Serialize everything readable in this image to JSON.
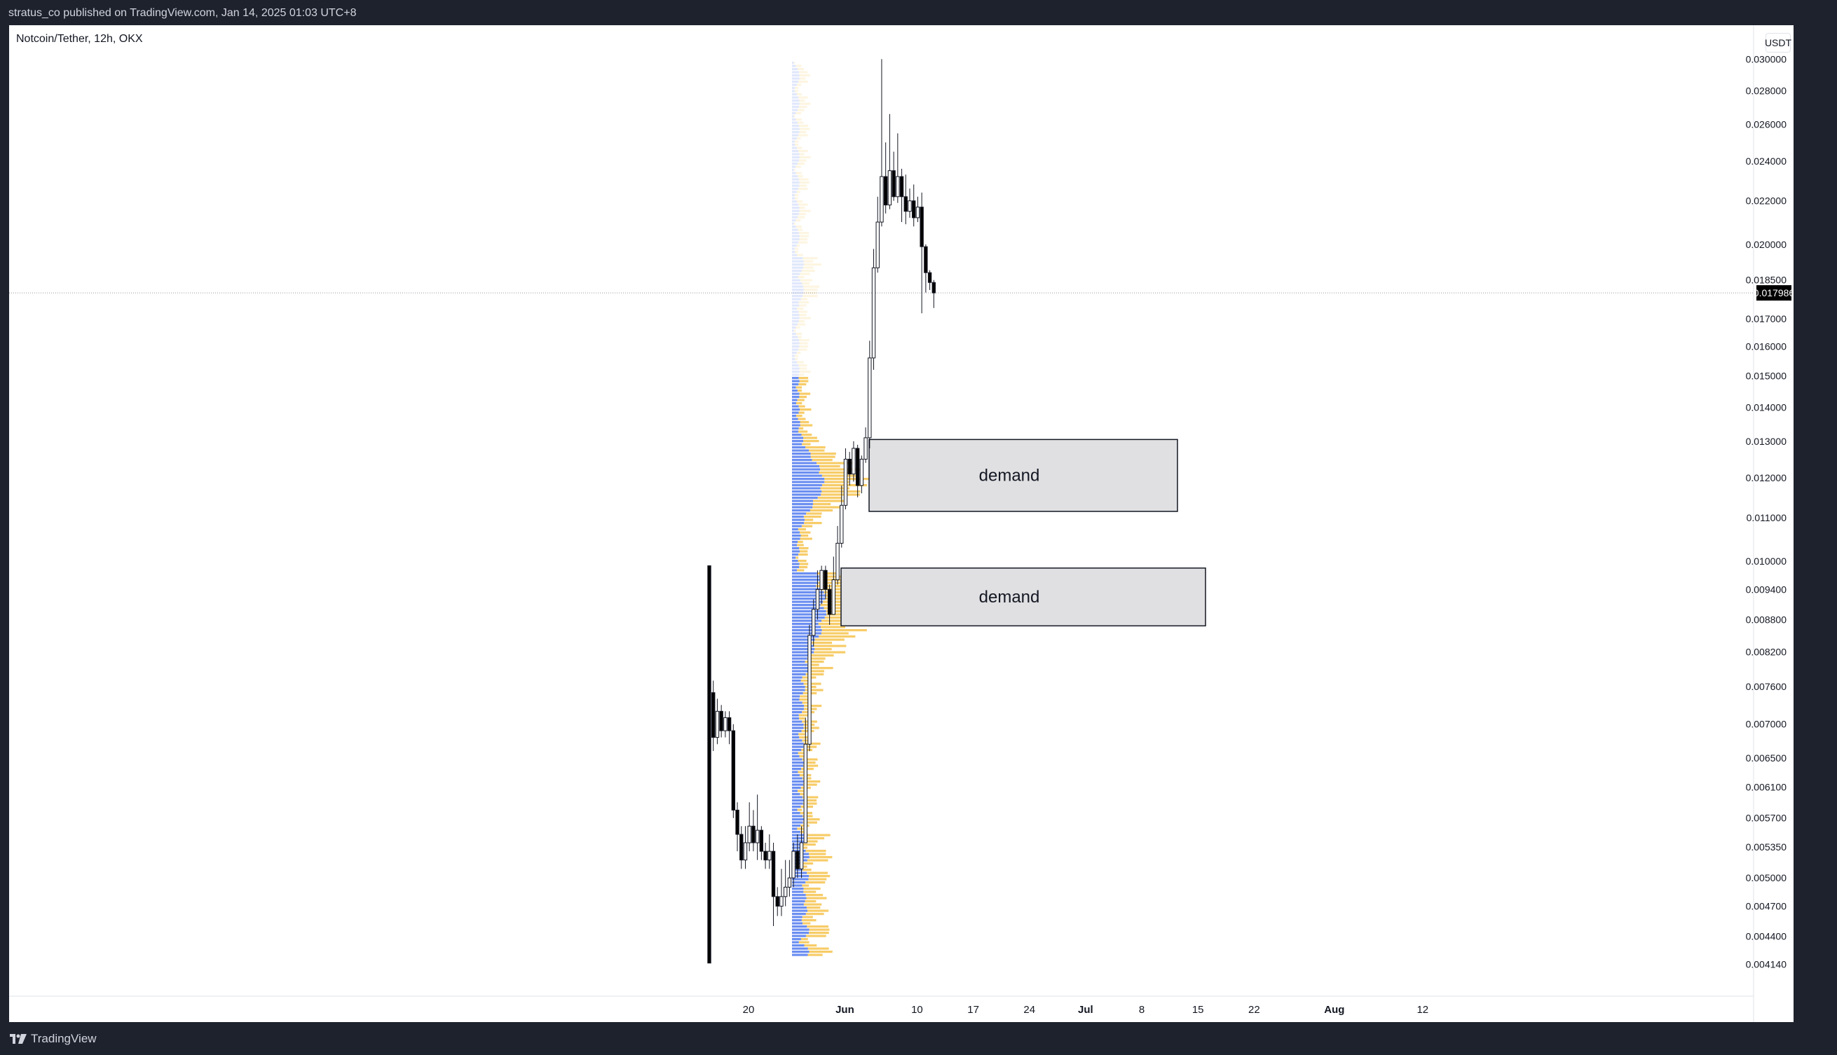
{
  "header": {
    "published_by": "stratus_co published on TradingView.com, Jan 14, 2025 01:03 UTC+8"
  },
  "chart": {
    "symbol": "Notcoin/Tether, 12h, OKX",
    "currency": "USDT",
    "current_price": "0.017986",
    "zone_label": "demand",
    "colors": {
      "up": "#ffffff",
      "down": "#000000",
      "vp_blue": "#5b82f0",
      "vp_orange": "#f6c658",
      "zone": "#e0e0e2"
    }
  },
  "footer": {
    "brand": "TradingView"
  },
  "chart_data": {
    "type": "candlestick",
    "title": "Notcoin/Tether, 12h, OKX",
    "y_scale": "log",
    "ylim": [
      0.00395,
      0.0302
    ],
    "price_ticks": [
      "0.030000",
      "0.028000",
      "0.026000",
      "0.024000",
      "0.022000",
      "0.020000",
      "0.018500",
      "0.017000",
      "0.016000",
      "0.015000",
      "0.014000",
      "0.013000",
      "0.012000",
      "0.011000",
      "0.010000",
      "0.009400",
      "0.008800",
      "0.008200",
      "0.007600",
      "0.007000",
      "0.006500",
      "0.006100",
      "0.005700",
      "0.005350",
      "0.005000",
      "0.004700",
      "0.004400",
      "0.004140"
    ],
    "time_ticks": [
      {
        "label": "20",
        "date": "2024-05-20",
        "bold": false
      },
      {
        "label": "Jun",
        "date": "2024-06-01",
        "bold": true
      },
      {
        "label": "10",
        "date": "2024-06-10",
        "bold": false
      },
      {
        "label": "17",
        "date": "2024-06-17",
        "bold": false
      },
      {
        "label": "24",
        "date": "2024-06-24",
        "bold": false
      },
      {
        "label": "Jul",
        "date": "2024-07-01",
        "bold": true
      },
      {
        "label": "8",
        "date": "2024-07-08",
        "bold": false
      },
      {
        "label": "15",
        "date": "2024-07-15",
        "bold": false
      },
      {
        "label": "22",
        "date": "2024-07-22",
        "bold": false
      },
      {
        "label": "Aug",
        "date": "2024-08-01",
        "bold": true
      },
      {
        "label": "12",
        "date": "2024-08-12",
        "bold": false
      }
    ],
    "candles": [
      [
        0.0099,
        0.00415,
        0.0099,
        0.0075
      ],
      [
        0.0075,
        0.0068,
        0.0077,
        0.0066
      ],
      [
        0.0068,
        0.0072,
        0.0074,
        0.0067
      ],
      [
        0.0072,
        0.0069,
        0.0073,
        0.0068
      ],
      [
        0.0069,
        0.0071,
        0.0072,
        0.0068
      ],
      [
        0.0071,
        0.0069,
        0.0072,
        0.0067
      ],
      [
        0.0069,
        0.0058,
        0.007,
        0.0057
      ],
      [
        0.0058,
        0.0055,
        0.0059,
        0.0053
      ],
      [
        0.0055,
        0.0052,
        0.0056,
        0.0051
      ],
      [
        0.0052,
        0.0054,
        0.0056,
        0.0051
      ],
      [
        0.0054,
        0.0056,
        0.0059,
        0.0053
      ],
      [
        0.0056,
        0.0054,
        0.0058,
        0.0053
      ],
      [
        0.0054,
        0.00555,
        0.006,
        0.0052
      ],
      [
        0.00555,
        0.0053,
        0.0056,
        0.0052
      ],
      [
        0.0053,
        0.0052,
        0.0054,
        0.0051
      ],
      [
        0.0052,
        0.0053,
        0.0055,
        0.0051
      ],
      [
        0.0053,
        0.0048,
        0.0054,
        0.0045
      ],
      [
        0.0048,
        0.0047,
        0.0049,
        0.0046
      ],
      [
        0.0047,
        0.0048,
        0.0051,
        0.0046
      ],
      [
        0.0048,
        0.0049,
        0.0052,
        0.0047
      ],
      [
        0.0049,
        0.005,
        0.0052,
        0.0048
      ],
      [
        0.005,
        0.0053,
        0.0054,
        0.0049
      ],
      [
        0.0053,
        0.0051,
        0.0055,
        0.005
      ],
      [
        0.0051,
        0.0054,
        0.0056,
        0.005
      ],
      [
        0.0054,
        0.0067,
        0.0071,
        0.0054
      ],
      [
        0.0067,
        0.0085,
        0.0087,
        0.0066
      ],
      [
        0.0085,
        0.009,
        0.0092,
        0.0083
      ],
      [
        0.009,
        0.0094,
        0.0098,
        0.0088
      ],
      [
        0.0094,
        0.0098,
        0.0099,
        0.0091
      ],
      [
        0.0098,
        0.0094,
        0.0099,
        0.0092
      ],
      [
        0.0094,
        0.0089,
        0.0095,
        0.0087
      ],
      [
        0.0089,
        0.0096,
        0.0101,
        0.0089
      ],
      [
        0.0096,
        0.0104,
        0.0108,
        0.0095
      ],
      [
        0.0104,
        0.0113,
        0.0118,
        0.0103
      ],
      [
        0.0113,
        0.0125,
        0.0128,
        0.0112
      ],
      [
        0.0125,
        0.0121,
        0.0127,
        0.0118
      ],
      [
        0.0121,
        0.0128,
        0.013,
        0.0119
      ],
      [
        0.0128,
        0.0118,
        0.0129,
        0.0115
      ],
      [
        0.0118,
        0.0125,
        0.0126,
        0.0116
      ],
      [
        0.0125,
        0.0131,
        0.0134,
        0.0124
      ],
      [
        0.0131,
        0.0156,
        0.0162,
        0.0128
      ],
      [
        0.0156,
        0.019,
        0.0198,
        0.0152
      ],
      [
        0.019,
        0.021,
        0.0222,
        0.0188
      ],
      [
        0.021,
        0.0232,
        0.03,
        0.0208
      ],
      [
        0.0232,
        0.0218,
        0.025,
        0.0214
      ],
      [
        0.0218,
        0.0235,
        0.0266,
        0.0216
      ],
      [
        0.0235,
        0.0222,
        0.0245,
        0.022
      ],
      [
        0.0222,
        0.0232,
        0.0255,
        0.0219
      ],
      [
        0.0232,
        0.0222,
        0.0236,
        0.021
      ],
      [
        0.0222,
        0.0215,
        0.0233,
        0.0209
      ],
      [
        0.0215,
        0.022,
        0.0226,
        0.0212
      ],
      [
        0.022,
        0.0212,
        0.0228,
        0.0208
      ],
      [
        0.0212,
        0.0217,
        0.0222,
        0.021
      ],
      [
        0.0217,
        0.0199,
        0.0224,
        0.0172
      ],
      [
        0.0199,
        0.0188,
        0.02,
        0.018
      ],
      [
        0.0188,
        0.0184,
        0.0189,
        0.0181
      ],
      [
        0.0184,
        0.017986,
        0.0185,
        0.0174
      ]
    ],
    "candle_fields": [
      "open",
      "close",
      "high",
      "low"
    ],
    "zones": [
      {
        "label": "demand",
        "price_top": 0.01305,
        "price_bottom": 0.01115
      },
      {
        "label": "demand",
        "price_top": 0.00985,
        "price_bottom": 0.00868
      }
    ]
  }
}
